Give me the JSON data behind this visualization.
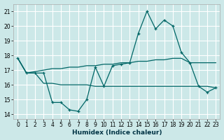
{
  "xlabel": "Humidex (Indice chaleur)",
  "ylabel": "",
  "background_color": "#cce8e8",
  "grid_color": "#ffffff",
  "line_color": "#006666",
  "xlim": [
    -0.5,
    23.5
  ],
  "ylim": [
    13.7,
    21.5
  ],
  "yticks": [
    14,
    15,
    16,
    17,
    18,
    19,
    20,
    21
  ],
  "xticks": [
    0,
    1,
    2,
    3,
    4,
    5,
    6,
    7,
    8,
    9,
    10,
    11,
    12,
    13,
    14,
    15,
    16,
    17,
    18,
    19,
    20,
    21,
    22,
    23
  ],
  "hours": [
    0,
    1,
    2,
    3,
    4,
    5,
    6,
    7,
    8,
    9,
    10,
    11,
    12,
    13,
    14,
    15,
    16,
    17,
    18,
    19,
    20,
    21,
    22,
    23
  ],
  "line1": [
    17.8,
    16.8,
    16.8,
    16.8,
    14.8,
    14.8,
    14.3,
    14.2,
    15.0,
    17.2,
    15.9,
    17.3,
    17.4,
    17.5,
    19.5,
    21.0,
    19.8,
    20.4,
    20.0,
    18.2,
    17.5,
    15.9,
    15.5,
    15.8
  ],
  "line2": [
    17.8,
    16.8,
    16.8,
    16.1,
    16.1,
    16.0,
    16.0,
    16.0,
    16.0,
    15.9,
    15.9,
    15.9,
    15.9,
    15.9,
    15.9,
    15.9,
    15.9,
    15.9,
    15.9,
    15.9,
    15.9,
    15.9,
    15.9,
    15.8
  ],
  "line3": [
    17.8,
    16.8,
    16.9,
    17.0,
    17.1,
    17.1,
    17.2,
    17.2,
    17.3,
    17.3,
    17.4,
    17.4,
    17.5,
    17.5,
    17.6,
    17.6,
    17.7,
    17.7,
    17.8,
    17.8,
    17.5,
    17.5,
    17.5,
    17.5
  ]
}
